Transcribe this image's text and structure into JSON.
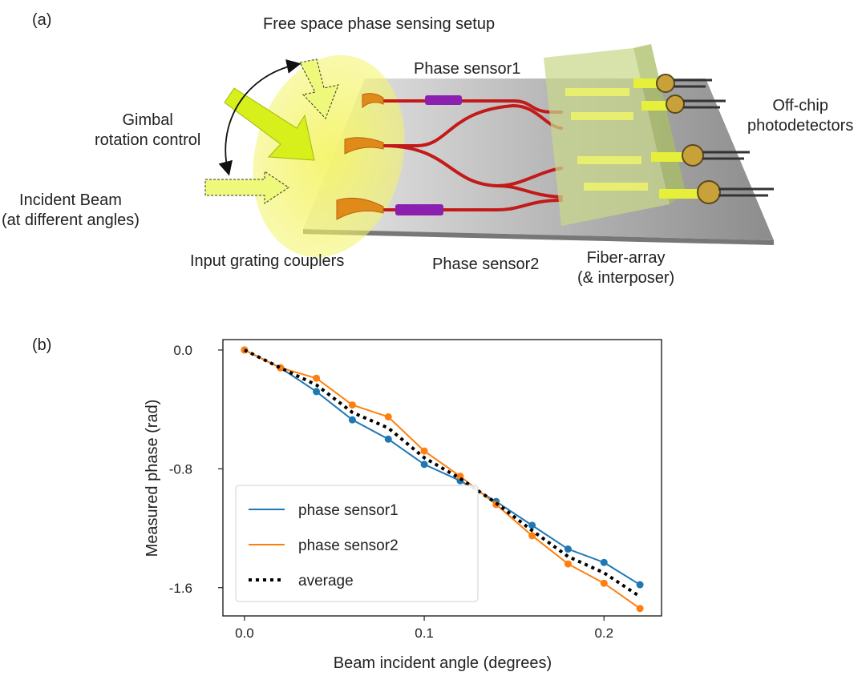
{
  "panel_a": {
    "tag": "(a)",
    "title": "Free space phase sensing setup",
    "label_phase_sensor1": "Phase sensor1",
    "label_phase_sensor2": "Phase sensor2",
    "label_gimbal": [
      "Gimbal",
      "rotation control"
    ],
    "label_incident": [
      "Incident Beam",
      "(at different angles)"
    ],
    "label_input_gc": "Input grating couplers",
    "label_fiber_array": [
      "Fiber-array",
      "(& interposer)"
    ],
    "label_photodetectors": [
      "Off-chip",
      "photodetectors"
    ]
  },
  "panel_b": {
    "tag": "(b)"
  },
  "chart_data": {
    "type": "line",
    "xlabel": "Beam incident angle (degrees)",
    "ylabel": "Measured phase (rad)",
    "xlim": [
      -0.012,
      0.232
    ],
    "ylim": [
      -1.79,
      0.07
    ],
    "xticks": [
      0.0,
      0.1,
      0.2
    ],
    "xtick_labels": [
      "0.0",
      "0.1",
      "0.2"
    ],
    "yticks": [
      0.0,
      -0.8,
      -1.6
    ],
    "ytick_labels": [
      "0.0",
      "-0.8",
      "-1.6"
    ],
    "grid": false,
    "legend_position": "bottom-left",
    "x": [
      0.0,
      0.02,
      0.04,
      0.06,
      0.08,
      0.1,
      0.12,
      0.14,
      0.16,
      0.18,
      0.2,
      0.22
    ],
    "series": [
      {
        "name": "phase sensor1",
        "color": "#1f77b4",
        "style": "solid-markers",
        "values": [
          0.0,
          -0.12,
          -0.28,
          -0.47,
          -0.6,
          -0.77,
          -0.88,
          -1.02,
          -1.18,
          -1.34,
          -1.43,
          -1.58
        ]
      },
      {
        "name": "phase sensor2",
        "color": "#ff7f0e",
        "style": "solid-markers",
        "values": [
          0.0,
          -0.12,
          -0.19,
          -0.37,
          -0.45,
          -0.68,
          -0.85,
          -1.04,
          -1.25,
          -1.44,
          -1.57,
          -1.74
        ]
      },
      {
        "name": "average",
        "color": "#000000",
        "style": "dotted",
        "values": [
          0.0,
          -0.12,
          -0.235,
          -0.42,
          -0.525,
          -0.725,
          -0.865,
          -1.03,
          -1.215,
          -1.39,
          -1.5,
          -1.66
        ]
      }
    ]
  }
}
